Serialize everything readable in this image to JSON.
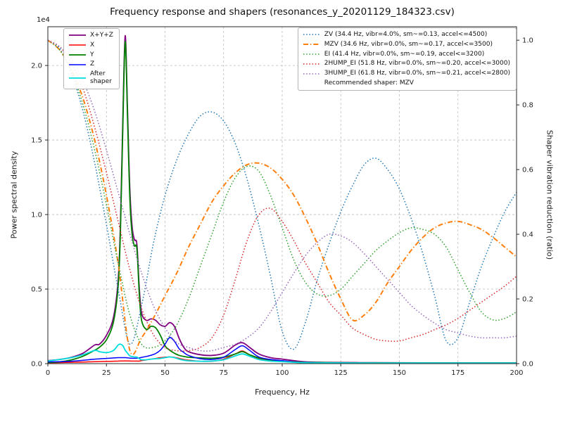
{
  "chart_data": {
    "type": "line",
    "title": "Frequency response and shapers (resonances_y_20201129_184323.csv)",
    "xlabel": "Frequency, Hz",
    "ylabel_left": "Power spectral density",
    "ylabel_right": "Shaper vibration reduction (ratio)",
    "offset_text": "1e4",
    "grid": true,
    "legend_left_loc": "upper left",
    "legend_right_loc": "upper right",
    "recommended": "Recommended shaper: MZV",
    "xlim": [
      0,
      200
    ],
    "ylim_left": [
      0,
      22600
    ],
    "ylim_right": [
      0,
      1.0417
    ],
    "x_ticks": [
      0,
      25,
      50,
      75,
      100,
      125,
      150,
      175,
      200
    ],
    "y_left_ticks": [
      0,
      5000,
      10000,
      15000,
      20000
    ],
    "y_left_tick_labels": [
      "0.0",
      "0.5",
      "1.0",
      "1.5",
      "2.0"
    ],
    "y_right_ticks": [
      0,
      0.2,
      0.4,
      0.6,
      0.8,
      1.0
    ],
    "psd_x": [
      0,
      5,
      10,
      15,
      20,
      22,
      25,
      28,
      30,
      31,
      32,
      33,
      34,
      35,
      36,
      37,
      38,
      39,
      40,
      42,
      44,
      46,
      48,
      50,
      52,
      54,
      56,
      58,
      60,
      65,
      70,
      75,
      80,
      83,
      86,
      90,
      95,
      100,
      105,
      110,
      120,
      140,
      160,
      180,
      200
    ],
    "psd_series": [
      {
        "name": "xyz",
        "label": "X+Y+Z",
        "color": "#800080",
        "style": "solid",
        "width": 1.8,
        "axis": "left",
        "y": [
          200,
          280,
          420,
          700,
          1250,
          1300,
          1900,
          3100,
          5600,
          9500,
          16500,
          22000,
          17000,
          11600,
          9100,
          8300,
          8000,
          5100,
          3400,
          2900,
          3000,
          2900,
          2600,
          2500,
          2750,
          2500,
          1700,
          1100,
          800,
          600,
          550,
          700,
          1250,
          1400,
          1100,
          650,
          400,
          300,
          200,
          120,
          80,
          60,
          50,
          50,
          50
        ]
      },
      {
        "name": "x",
        "label": "X",
        "color": "#ff0000",
        "style": "solid",
        "width": 1.5,
        "axis": "left",
        "y": [
          60,
          70,
          90,
          110,
          130,
          140,
          150,
          160,
          170,
          175,
          180,
          185,
          180,
          175,
          170,
          170,
          170,
          170,
          200,
          250,
          300,
          350,
          400,
          430,
          450,
          420,
          350,
          280,
          230,
          160,
          160,
          300,
          650,
          850,
          600,
          330,
          200,
          150,
          90,
          60,
          40,
          30,
          30,
          30,
          30
        ]
      },
      {
        "name": "y",
        "label": "Y",
        "color": "#008000",
        "style": "solid",
        "width": 1.8,
        "axis": "left",
        "y": [
          80,
          120,
          250,
          500,
          900,
          1100,
          1600,
          2800,
          5200,
          9000,
          16000,
          21600,
          16500,
          11000,
          8600,
          7900,
          7700,
          4700,
          2900,
          2300,
          2500,
          2400,
          1900,
          1200,
          900,
          700,
          550,
          480,
          430,
          380,
          360,
          430,
          650,
          800,
          600,
          380,
          250,
          180,
          120,
          80,
          60,
          50,
          40,
          40,
          40
        ]
      },
      {
        "name": "z",
        "label": "Z",
        "color": "#0000ff",
        "style": "solid",
        "width": 1.5,
        "axis": "left",
        "y": [
          120,
          130,
          160,
          220,
          300,
          320,
          350,
          380,
          400,
          400,
          400,
          400,
          390,
          370,
          360,
          360,
          370,
          380,
          420,
          480,
          560,
          680,
          900,
          1300,
          1750,
          1500,
          1000,
          750,
          550,
          330,
          280,
          430,
          950,
          1200,
          900,
          450,
          280,
          200,
          110,
          70,
          50,
          40,
          40,
          40,
          40
        ]
      },
      {
        "name": "after-shaper",
        "label": "After\nshaper",
        "color": "#00dddd",
        "style": "solid",
        "width": 1.8,
        "axis": "left",
        "y": [
          180,
          280,
          400,
          600,
          880,
          800,
          740,
          880,
          1250,
          1300,
          1200,
          900,
          700,
          520,
          470,
          450,
          440,
          330,
          260,
          260,
          300,
          330,
          350,
          400,
          450,
          400,
          300,
          230,
          190,
          160,
          170,
          260,
          520,
          650,
          500,
          280,
          170,
          130,
          90,
          60,
          50,
          40,
          40,
          40,
          40
        ]
      }
    ],
    "shaper_x": [
      0,
      5,
      10,
      15,
      20,
      25,
      30,
      35,
      40,
      45,
      50,
      55,
      60,
      65,
      70,
      75,
      80,
      85,
      90,
      95,
      100,
      105,
      110,
      115,
      120,
      125,
      130,
      135,
      140,
      145,
      150,
      155,
      160,
      165,
      170,
      175,
      180,
      185,
      190,
      195,
      200
    ],
    "shaper_series": [
      {
        "name": "zv",
        "label": "ZV (34.4 Hz, vibr=4.0%, sm~=0.13, accel<=4500)",
        "color": "#1f77b4",
        "style": "dotted",
        "width": 1.5,
        "axis": "right",
        "y": [
          1.0,
          0.975,
          0.9,
          0.78,
          0.62,
          0.43,
          0.23,
          0.06,
          0.18,
          0.37,
          0.52,
          0.63,
          0.71,
          0.765,
          0.778,
          0.75,
          0.68,
          0.57,
          0.43,
          0.27,
          0.1,
          0.045,
          0.13,
          0.26,
          0.37,
          0.47,
          0.55,
          0.615,
          0.635,
          0.6,
          0.54,
          0.45,
          0.34,
          0.21,
          0.07,
          0.08,
          0.19,
          0.3,
          0.39,
          0.47,
          0.53
        ]
      },
      {
        "name": "mzv",
        "label": "MZV (34.6 Hz, vibr=0.0%, sm~=0.17, accel<=3500)",
        "color": "#ff7f0e",
        "style": "dashdot",
        "width": 2,
        "axis": "right",
        "y": [
          1.0,
          0.97,
          0.91,
          0.82,
          0.69,
          0.52,
          0.31,
          0.04,
          0.08,
          0.14,
          0.21,
          0.28,
          0.36,
          0.43,
          0.5,
          0.55,
          0.59,
          0.615,
          0.62,
          0.605,
          0.57,
          0.52,
          0.45,
          0.37,
          0.28,
          0.2,
          0.135,
          0.15,
          0.19,
          0.25,
          0.3,
          0.35,
          0.39,
          0.42,
          0.435,
          0.44,
          0.43,
          0.415,
          0.39,
          0.36,
          0.33
        ]
      },
      {
        "name": "ei",
        "label": "EI (41.4 Hz, vibr=0.0%, sm~=0.19, accel<=3200)",
        "color": "#2ca02c",
        "style": "dotted",
        "width": 1.5,
        "axis": "right",
        "y": [
          1.0,
          0.97,
          0.905,
          0.8,
          0.66,
          0.49,
          0.31,
          0.15,
          0.06,
          0.05,
          0.07,
          0.12,
          0.2,
          0.3,
          0.4,
          0.5,
          0.575,
          0.61,
          0.595,
          0.52,
          0.42,
          0.32,
          0.25,
          0.215,
          0.21,
          0.23,
          0.27,
          0.31,
          0.35,
          0.38,
          0.405,
          0.42,
          0.415,
          0.4,
          0.36,
          0.29,
          0.22,
          0.16,
          0.135,
          0.14,
          0.16
        ]
      },
      {
        "name": "2hump-ei",
        "label": "2HUMP_EI (51.8 Hz, vibr=0.0%, sm~=0.20, accel<=3000)",
        "color": "#d62728",
        "style": "dotted",
        "width": 1.5,
        "axis": "right",
        "y": [
          1.0,
          0.98,
          0.93,
          0.85,
          0.73,
          0.59,
          0.44,
          0.29,
          0.17,
          0.09,
          0.05,
          0.04,
          0.04,
          0.05,
          0.08,
          0.15,
          0.26,
          0.38,
          0.46,
          0.48,
          0.44,
          0.38,
          0.31,
          0.25,
          0.19,
          0.15,
          0.11,
          0.09,
          0.075,
          0.07,
          0.07,
          0.08,
          0.09,
          0.105,
          0.12,
          0.14,
          0.165,
          0.19,
          0.215,
          0.24,
          0.27
        ]
      },
      {
        "name": "3hump-ei",
        "label": "3HUMP_EI (61.8 Hz, vibr=0.0%, sm~=0.21, accel<=2800)",
        "color": "#9467bd",
        "style": "dotted",
        "width": 1.5,
        "axis": "right",
        "y": [
          1.0,
          0.98,
          0.945,
          0.875,
          0.78,
          0.66,
          0.53,
          0.4,
          0.28,
          0.18,
          0.11,
          0.065,
          0.05,
          0.04,
          0.04,
          0.05,
          0.06,
          0.08,
          0.11,
          0.16,
          0.22,
          0.28,
          0.335,
          0.375,
          0.4,
          0.395,
          0.375,
          0.34,
          0.3,
          0.26,
          0.22,
          0.18,
          0.15,
          0.125,
          0.105,
          0.095,
          0.085,
          0.08,
          0.08,
          0.08,
          0.085
        ]
      }
    ]
  }
}
